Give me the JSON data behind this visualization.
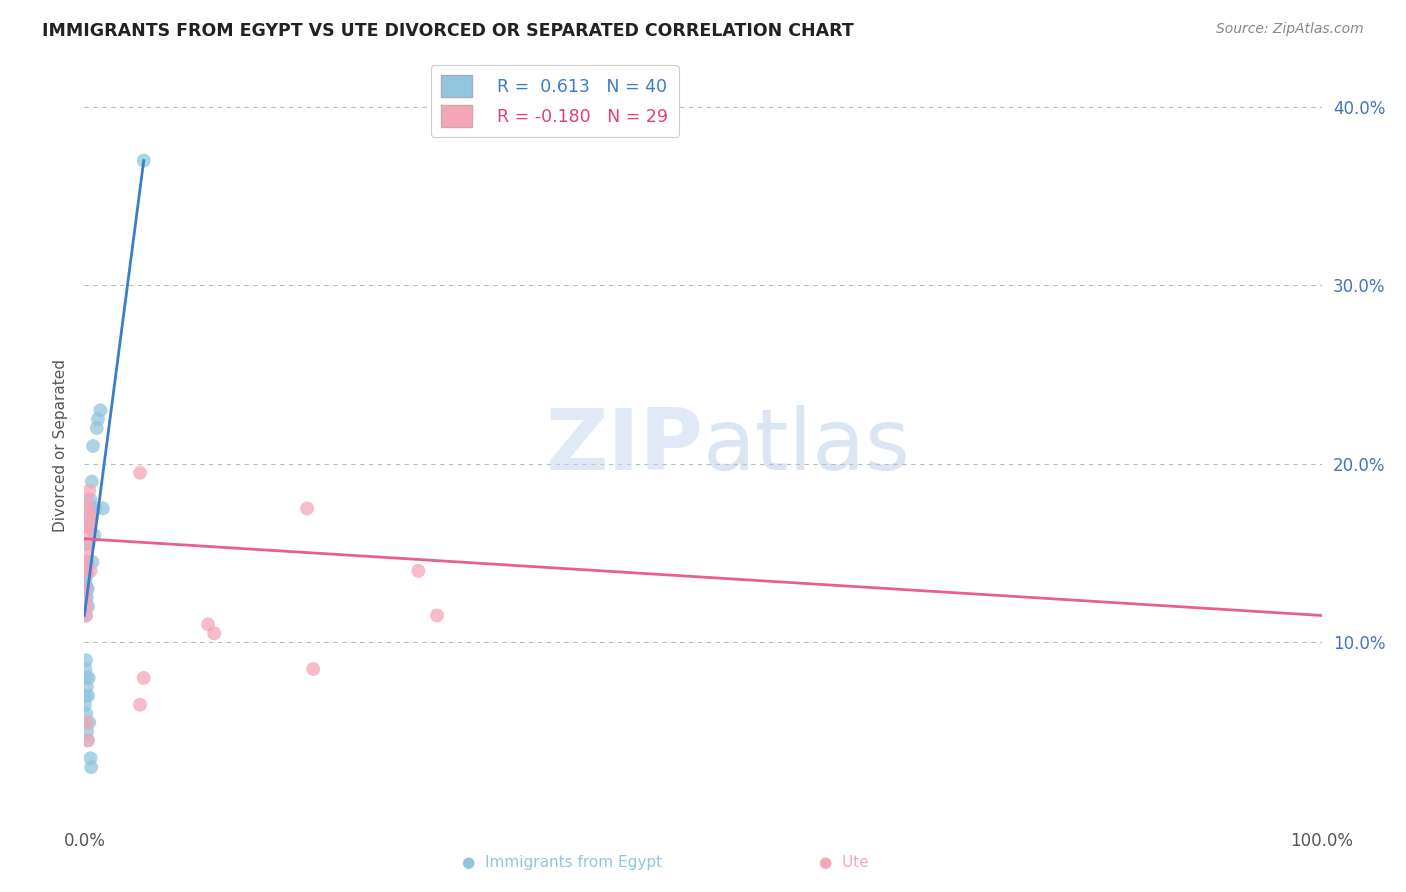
{
  "title": "IMMIGRANTS FROM EGYPT VS UTE DIVORCED OR SEPARATED CORRELATION CHART",
  "source": "Source: ZipAtlas.com",
  "ylabel": "Divorced or Separated",
  "legend_label1": "Immigrants from Egypt",
  "legend_label2": "Ute",
  "blue_color": "#92c5de",
  "pink_color": "#f4a6b8",
  "blue_line_color": "#3a7dc9",
  "pink_line_color": "#e8608a",
  "watermark_zip": "ZIP",
  "watermark_atlas": "atlas",
  "xlim": [
    0,
    100
  ],
  "ylim": [
    0,
    42
  ],
  "yticks": [
    10,
    20,
    30,
    40
  ],
  "ytick_labels": [
    "10.0%",
    "20.0%",
    "30.0%",
    "40.0%"
  ],
  "background_color": "#ffffff",
  "grid_color": "#bbbbbb",
  "blue_points": [
    [
      0.08,
      13.5
    ],
    [
      0.1,
      12.8
    ],
    [
      0.12,
      13.2
    ],
    [
      0.15,
      11.5
    ],
    [
      0.18,
      13.0
    ],
    [
      0.2,
      12.5
    ],
    [
      0.22,
      13.8
    ],
    [
      0.25,
      14.5
    ],
    [
      0.28,
      13.0
    ],
    [
      0.3,
      12.0
    ],
    [
      0.35,
      15.5
    ],
    [
      0.4,
      17.0
    ],
    [
      0.45,
      16.5
    ],
    [
      0.5,
      18.0
    ],
    [
      0.55,
      17.5
    ],
    [
      0.6,
      19.0
    ],
    [
      0.65,
      14.5
    ],
    [
      0.7,
      21.0
    ],
    [
      0.8,
      16.0
    ],
    [
      0.9,
      17.5
    ],
    [
      1.0,
      22.0
    ],
    [
      1.1,
      22.5
    ],
    [
      1.3,
      23.0
    ],
    [
      1.5,
      17.5
    ],
    [
      0.05,
      6.5
    ],
    [
      0.07,
      5.5
    ],
    [
      0.09,
      8.5
    ],
    [
      0.11,
      7.0
    ],
    [
      0.13,
      9.0
    ],
    [
      0.15,
      6.0
    ],
    [
      0.18,
      8.0
    ],
    [
      0.2,
      7.5
    ],
    [
      0.22,
      5.0
    ],
    [
      0.25,
      4.5
    ],
    [
      0.3,
      7.0
    ],
    [
      0.35,
      8.0
    ],
    [
      0.4,
      5.5
    ],
    [
      0.5,
      3.5
    ],
    [
      0.55,
      3.0
    ],
    [
      4.8,
      37.0
    ]
  ],
  "pink_points": [
    [
      0.05,
      14.5
    ],
    [
      0.08,
      16.5
    ],
    [
      0.1,
      15.0
    ],
    [
      0.12,
      17.5
    ],
    [
      0.15,
      14.0
    ],
    [
      0.18,
      16.0
    ],
    [
      0.2,
      15.5
    ],
    [
      0.22,
      18.0
    ],
    [
      0.25,
      17.0
    ],
    [
      0.3,
      17.5
    ],
    [
      0.35,
      16.5
    ],
    [
      0.4,
      18.5
    ],
    [
      0.5,
      14.0
    ],
    [
      0.6,
      17.0
    ],
    [
      0.05,
      12.5
    ],
    [
      0.08,
      13.0
    ],
    [
      0.1,
      11.5
    ],
    [
      0.15,
      12.0
    ],
    [
      4.5,
      19.5
    ],
    [
      18.0,
      17.5
    ],
    [
      27.0,
      14.0
    ],
    [
      10.0,
      11.0
    ],
    [
      18.5,
      8.5
    ],
    [
      28.5,
      11.5
    ],
    [
      4.8,
      8.0
    ],
    [
      10.5,
      10.5
    ],
    [
      4.5,
      6.5
    ],
    [
      0.2,
      5.5
    ],
    [
      0.3,
      4.5
    ]
  ],
  "blue_line_x": [
    0.0,
    4.8
  ],
  "blue_line_y": [
    11.5,
    37.0
  ],
  "pink_line_x": [
    0.0,
    100.0
  ],
  "pink_line_y": [
    15.8,
    11.5
  ]
}
